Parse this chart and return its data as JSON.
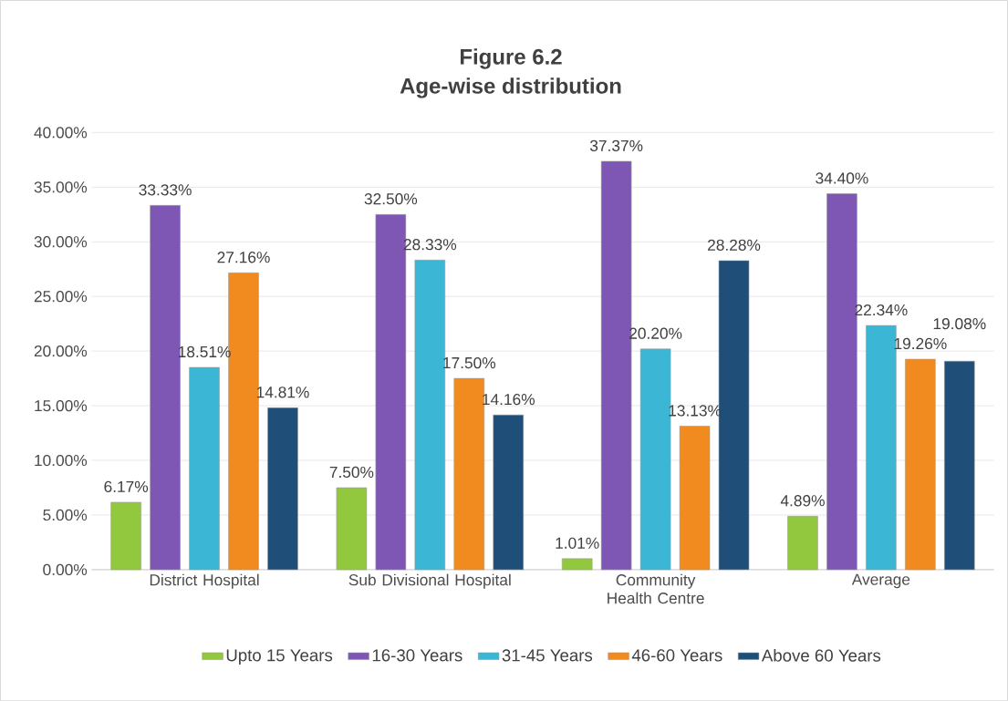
{
  "chart_data": {
    "type": "bar",
    "title": "Figure 6.2",
    "subtitle": "Age-wise distribution",
    "categories": [
      "District Hospital",
      "Sub Divisional Hospital",
      "Community Health Centre",
      "Average"
    ],
    "series": [
      {
        "name": "Upto 15 Years",
        "color": "#92c83e",
        "values": [
          6.17,
          7.5,
          1.01,
          4.89
        ],
        "value_labels": [
          "6.17%",
          "7.50%",
          "1.01%",
          "4.89%"
        ]
      },
      {
        "name": "16-30 Years",
        "color": "#7e57b4",
        "values": [
          33.33,
          32.5,
          37.37,
          34.4
        ],
        "value_labels": [
          "33.33%",
          "32.50%",
          "37.37%",
          "34.40%"
        ]
      },
      {
        "name": "31-45 Years",
        "color": "#3bb6d4",
        "values": [
          18.51,
          28.33,
          20.2,
          22.34
        ],
        "value_labels": [
          "18.51%",
          "28.33%",
          "20.20%",
          "22.34%"
        ]
      },
      {
        "name": "46-60 Years",
        "color": "#f18b1f",
        "values": [
          27.16,
          17.5,
          13.13,
          19.26
        ],
        "value_labels": [
          "27.16%",
          "17.50%",
          "13.13%",
          "19.26%"
        ]
      },
      {
        "name": "Above 60 Years",
        "color": "#1f4e79",
        "values": [
          14.81,
          14.16,
          28.28,
          19.08
        ],
        "value_labels": [
          "14.81%",
          "14.16%",
          "28.28%",
          "19.08%"
        ]
      }
    ],
    "ylim": [
      0,
      40
    ],
    "yticks": [
      {
        "value": 0,
        "label": "0.00%"
      },
      {
        "value": 5,
        "label": "5.00%"
      },
      {
        "value": 10,
        "label": "10.00%"
      },
      {
        "value": 15,
        "label": "15.00%"
      },
      {
        "value": 20,
        "label": "20.00%"
      },
      {
        "value": 25,
        "label": "25.00%"
      },
      {
        "value": 30,
        "label": "30.00%"
      },
      {
        "value": 35,
        "label": "35.00%"
      },
      {
        "value": 40,
        "label": "40.00%"
      }
    ],
    "grid": "y",
    "legend": "bottom"
  }
}
